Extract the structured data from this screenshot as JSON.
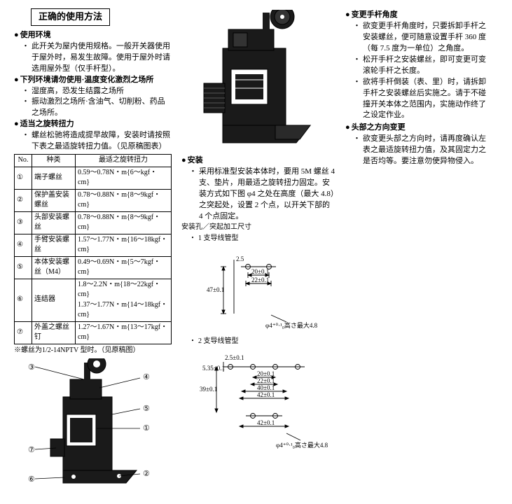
{
  "title": "正确的使用方法",
  "left": {
    "env_heading": "使用环境",
    "env_body": "此开关为屋内使用规格。一般开关器使用于屋外时，易发生故障。使用于屋外时请选用屋外型（仅手杆型）。",
    "prohibit_heading": "下列环境请勿使用·温度变化激烈之场所",
    "prohibit_items": [
      "湿度高，恐发生结露之场所",
      "振动激烈之场所·含油气、切削粉、药品之场所。"
    ],
    "torque_heading": "适当之旋转扭力",
    "torque_body": "螺丝松驰将造成提早故障，安装时请按照下表之最适旋转扭力值。（见原稿图表）",
    "table_headers": {
      "no": "No.",
      "kind": "种类",
      "torque": "最适之旋转扭力"
    },
    "table_rows": [
      {
        "no": "①",
        "kind": "端子螺丝",
        "torque": "0.59～0.78N・m{6～kgf・cm}"
      },
      {
        "no": "②",
        "kind": "保护盖安装螺丝",
        "torque": "0.78～0.88N・m{8～9kgf・cm}"
      },
      {
        "no": "③",
        "kind": "头部安装螺丝",
        "torque": "0.78～0.88N・m{8～9kgf・cm}"
      },
      {
        "no": "④",
        "kind": "手臂安装螺丝",
        "torque": "1.57～1.77N・m{16～18kgf・cm}"
      },
      {
        "no": "⑤",
        "kind": "本体安装螺丝（M4）",
        "torque": "0.49～0.69N・m{5～7kgf・cm}"
      },
      {
        "no": "⑥",
        "kind": "连结器",
        "torque": "1.8～2.2N・m{18～22kgf・cm}\n1.37～1.77N・m{14～18kgf・cm}"
      },
      {
        "no": "⑦",
        "kind": "外盖之螺丝钉",
        "torque": "1.27～1.67N・m{13～17kgf・cm}"
      }
    ],
    "table_footnote": "※螺丝为1/2-14NPTV 型时。（见原稿图）",
    "callouts": [
      "①",
      "②",
      "③",
      "④",
      "⑤",
      "⑥",
      "⑦"
    ],
    "fig": {
      "body_fill": "#111",
      "stroke": "#000",
      "bg": "#fff",
      "lead_color": "#000"
    }
  },
  "center": {
    "install_heading": "安装",
    "install_body": "采用标准型安装本体时，要用 5M 螺丝 4 支、垫片，用最适之旋转扭力固定。安装方式如下图 φ4 之处在高度（最大 4.8）之突起处，设置 2 个点，以开关下部的 4 个点固定。",
    "install_subtitle": "安装孔／突起加工尺寸",
    "variant1": "1 支导线管型",
    "variant2": "2 支导线管型",
    "dims": {
      "v1": {
        "a": "2.5",
        "b": "20±0.1",
        "c": "22±0.1",
        "h": "47±0.1",
        "note": "φ4⁺⁰·¹₀高さ最大4.8"
      },
      "v2": {
        "a": "2.5±0.1",
        "d": "5.35±0.1",
        "b": "20±0.1",
        "c": "22±0.1",
        "e": "40±0.1",
        "f": "42±0.1",
        "g": "39±0.1",
        "h": "42±0.1",
        "note": "φ4⁺⁰·¹₀高さ最大4.8"
      }
    },
    "fig": {
      "body_fill": "#111",
      "stroke": "#000",
      "bg": "#fff"
    },
    "dim_style": {
      "stroke": "#000",
      "fontsize": 9
    }
  },
  "right": {
    "angle_heading": "变更手杆角度",
    "angle_items": [
      "欲变更手杆角度时，只要拆卸手杆之安装螺丝，便可随意设置手杆 360 度（每 7.5 度为一单位）之角度。",
      "松开手杆之安装螺丝，即可变更可变滚轮手杆之长度。",
      "欲将手杆倒装（表、里）时，请拆卸手杆之安装螺丝后实施之。请于不碰撞开关本体之范围内，实施动作终了之设定作业。"
    ],
    "head_heading": "头部之方向变更",
    "head_body": "欲变更头部之方向时，请再度确认左表之最适旋转扭力值，及其固定力之是否均等。要注意勿使异物侵入。"
  }
}
